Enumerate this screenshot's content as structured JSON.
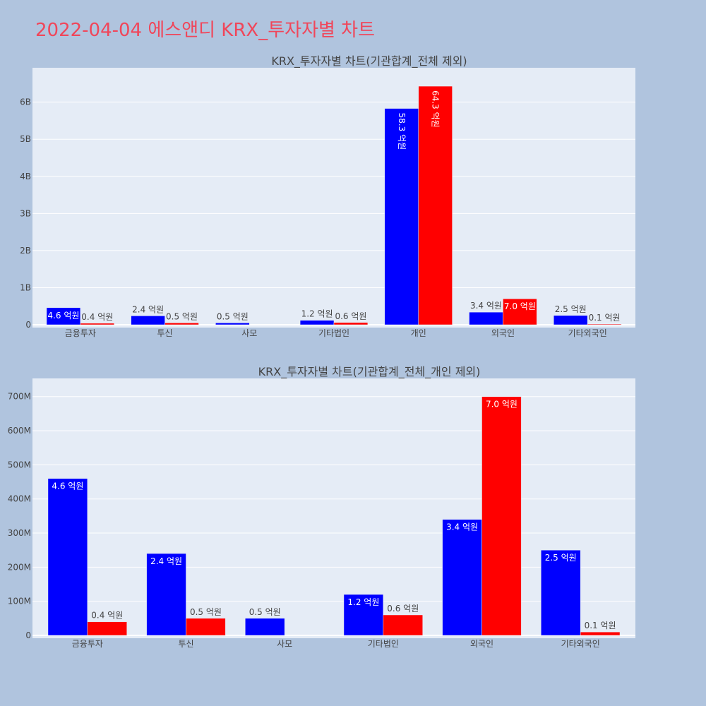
{
  "page": {
    "title": "2022-04-04 에스앤디 KRX_투자자별 차트"
  },
  "colors": {
    "buy": "#0000ff",
    "sell": "#ff0000",
    "background": "#b0c4de",
    "plot": "#e5ecf6",
    "title": "#f0465a"
  },
  "chart_data": [
    {
      "type": "bar",
      "title": "KRX_투자자별 차트(기관합계_전체 제외)",
      "categories": [
        "금융투자",
        "투신",
        "사모",
        "기타법인",
        "개인",
        "외국인",
        "기타외국인"
      ],
      "series": [
        {
          "color": "#0000ff",
          "values": [
            460000000,
            240000000,
            50000000,
            120000000,
            5830000000,
            340000000,
            250000000
          ],
          "labels": [
            "4.6 억원",
            "2.4 억원",
            "0.5 억원",
            "1.2 억원",
            "58.3 억원",
            "3.4 억원",
            "2.5 억원"
          ]
        },
        {
          "color": "#ff0000",
          "values": [
            40000000,
            50000000,
            null,
            60000000,
            6430000000,
            700000000,
            10000000
          ],
          "labels": [
            "0.4 억원",
            "0.5 억원",
            "",
            "0.6 억원",
            "64.3 억원",
            "7.0 억원",
            "0.1 억원"
          ]
        }
      ],
      "ylim": [
        0,
        6850000000
      ],
      "yticks": [
        0,
        1000000000,
        2000000000,
        3000000000,
        4000000000,
        5000000000,
        6000000000
      ],
      "ytick_labels": [
        "0",
        "1B",
        "2B",
        "3B",
        "4B",
        "5B",
        "6B"
      ],
      "grid": true
    },
    {
      "type": "bar",
      "title": "KRX_투자자별 차트(기관합계_전체_개인 제외)",
      "categories": [
        "금융투자",
        "투신",
        "사모",
        "기타법인",
        "외국인",
        "기타외국인"
      ],
      "series": [
        {
          "color": "#0000ff",
          "values": [
            460000000,
            240000000,
            50000000,
            120000000,
            340000000,
            250000000
          ],
          "labels": [
            "4.6 억원",
            "2.4 억원",
            "0.5 억원",
            "1.2 억원",
            "3.4 억원",
            "2.5 억원"
          ]
        },
        {
          "color": "#ff0000",
          "values": [
            40000000,
            50000000,
            null,
            60000000,
            700000000,
            10000000
          ],
          "labels": [
            "0.4 억원",
            "0.5 억원",
            "",
            "0.6 억원",
            "7.0 억원",
            "0.1 억원"
          ]
        }
      ],
      "ylim": [
        0,
        745000000
      ],
      "yticks": [
        0,
        100000000,
        200000000,
        300000000,
        400000000,
        500000000,
        600000000,
        700000000
      ],
      "ytick_labels": [
        "0",
        "100M",
        "200M",
        "300M",
        "400M",
        "500M",
        "600M",
        "700M"
      ],
      "grid": true
    }
  ]
}
